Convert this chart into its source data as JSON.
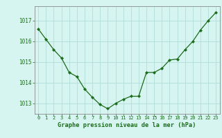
{
  "x": [
    0,
    1,
    2,
    3,
    4,
    5,
    6,
    7,
    8,
    9,
    10,
    11,
    12,
    13,
    14,
    15,
    16,
    17,
    18,
    19,
    20,
    21,
    22,
    23
  ],
  "y": [
    1016.6,
    1016.1,
    1015.6,
    1015.2,
    1014.5,
    1014.3,
    1013.7,
    1013.3,
    1012.95,
    1012.75,
    1013.0,
    1013.2,
    1013.35,
    1013.35,
    1014.5,
    1014.5,
    1014.7,
    1015.1,
    1015.15,
    1015.6,
    1016.0,
    1016.55,
    1017.0,
    1017.4
  ],
  "line_color": "#1a6b1a",
  "marker": "D",
  "marker_size": 2.2,
  "bg_color": "#d6f5f0",
  "grid_color": "#b0ddd8",
  "ylim": [
    1012.5,
    1017.7
  ],
  "xlim": [
    -0.5,
    23.5
  ],
  "yticks": [
    1013,
    1014,
    1015,
    1016,
    1017
  ],
  "xticks": [
    0,
    1,
    2,
    3,
    4,
    5,
    6,
    7,
    8,
    9,
    10,
    11,
    12,
    13,
    14,
    15,
    16,
    17,
    18,
    19,
    20,
    21,
    22,
    23
  ],
  "xlabel": "Graphe pression niveau de la mer (hPa)",
  "xlabel_color": "#1a6b1a",
  "tick_color": "#1a6b1a",
  "axis_color": "#888888",
  "tick_fontsize": 5.0,
  "ytick_fontsize": 5.5,
  "xlabel_fontsize": 6.2
}
